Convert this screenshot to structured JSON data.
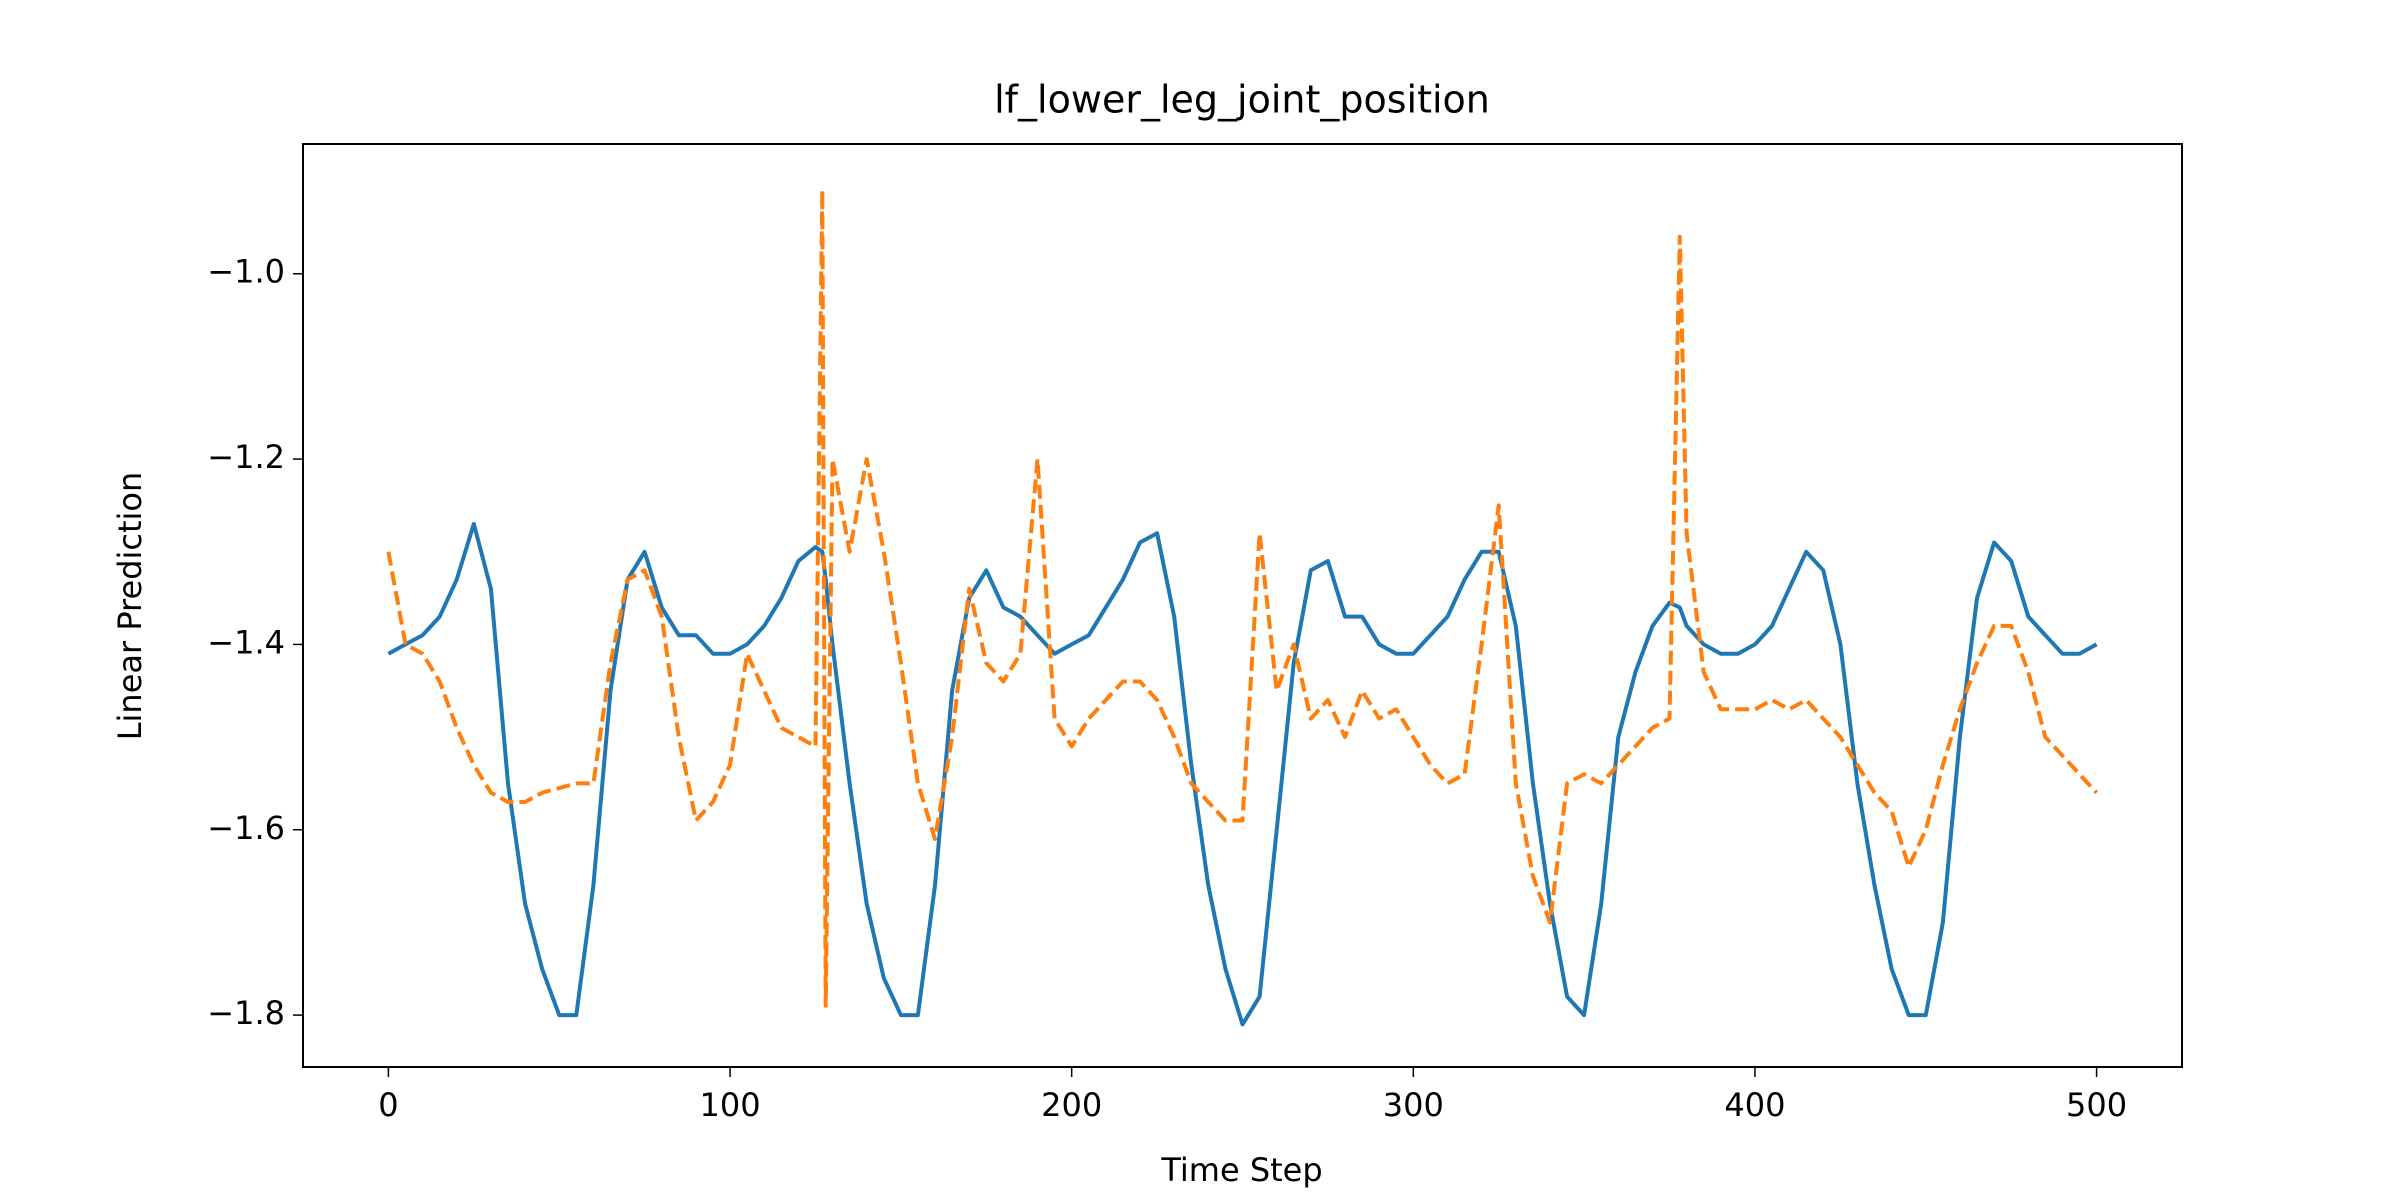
{
  "chart_data": {
    "type": "line",
    "title": "lf_lower_leg_joint_position",
    "x_label": "Time Step",
    "y_label": "Linear Prediction",
    "x": [
      0,
      5,
      10,
      15,
      20,
      25,
      30,
      35,
      40,
      45,
      50,
      55,
      60,
      65,
      70,
      75,
      80,
      85,
      90,
      95,
      100,
      105,
      110,
      115,
      120,
      125,
      127,
      128,
      130,
      135,
      140,
      145,
      150,
      155,
      160,
      165,
      170,
      175,
      180,
      185,
      190,
      195,
      200,
      205,
      210,
      215,
      220,
      225,
      230,
      235,
      240,
      245,
      250,
      255,
      260,
      265,
      270,
      275,
      280,
      285,
      290,
      295,
      300,
      305,
      310,
      315,
      320,
      325,
      330,
      335,
      340,
      345,
      350,
      355,
      360,
      365,
      370,
      375,
      378,
      380,
      385,
      390,
      395,
      400,
      405,
      410,
      415,
      420,
      425,
      430,
      435,
      440,
      445,
      450,
      455,
      460,
      465,
      470,
      475,
      480,
      485,
      490,
      495,
      500
    ],
    "series": [
      {
        "color": "#1f77b4",
        "dashed": false,
        "values": [
          -1.41,
          -1.4,
          -1.39,
          -1.37,
          -1.33,
          -1.27,
          -1.34,
          -1.55,
          -1.68,
          -1.75,
          -1.8,
          -1.8,
          -1.66,
          -1.45,
          -1.33,
          -1.3,
          -1.36,
          -1.39,
          -1.39,
          -1.41,
          -1.41,
          -1.4,
          -1.38,
          -1.35,
          -1.31,
          -1.295,
          -1.3,
          -1.33,
          -1.4,
          -1.55,
          -1.68,
          -1.76,
          -1.8,
          -1.8,
          -1.66,
          -1.45,
          -1.35,
          -1.32,
          -1.36,
          -1.37,
          -1.39,
          -1.41,
          -1.4,
          -1.39,
          -1.36,
          -1.33,
          -1.29,
          -1.28,
          -1.37,
          -1.53,
          -1.66,
          -1.75,
          -1.81,
          -1.78,
          -1.6,
          -1.42,
          -1.32,
          -1.31,
          -1.37,
          -1.37,
          -1.4,
          -1.41,
          -1.41,
          -1.39,
          -1.37,
          -1.33,
          -1.3,
          -1.3,
          -1.38,
          -1.55,
          -1.68,
          -1.78,
          -1.8,
          -1.68,
          -1.5,
          -1.43,
          -1.38,
          -1.355,
          -1.36,
          -1.38,
          -1.4,
          -1.41,
          -1.41,
          -1.4,
          -1.38,
          -1.34,
          -1.3,
          -1.32,
          -1.4,
          -1.55,
          -1.66,
          -1.75,
          -1.8,
          -1.8,
          -1.7,
          -1.5,
          -1.35,
          -1.29,
          -1.31,
          -1.37,
          -1.39,
          -1.41,
          -1.41,
          -1.4
        ]
      },
      {
        "color": "#ff7f0e",
        "dashed": true,
        "values": [
          -1.3,
          -1.4,
          -1.41,
          -1.44,
          -1.49,
          -1.53,
          -1.56,
          -1.57,
          -1.57,
          -1.56,
          -1.555,
          -1.55,
          -1.55,
          -1.42,
          -1.33,
          -1.32,
          -1.37,
          -1.5,
          -1.59,
          -1.57,
          -1.53,
          -1.41,
          -1.45,
          -1.49,
          -1.5,
          -1.51,
          -0.91,
          -1.79,
          -1.2,
          -1.3,
          -1.2,
          -1.3,
          -1.42,
          -1.55,
          -1.61,
          -1.5,
          -1.34,
          -1.42,
          -1.44,
          -1.41,
          -1.2,
          -1.48,
          -1.51,
          -1.48,
          -1.46,
          -1.44,
          -1.44,
          -1.46,
          -1.5,
          -1.55,
          -1.57,
          -1.59,
          -1.59,
          -1.28,
          -1.45,
          -1.4,
          -1.48,
          -1.46,
          -1.5,
          -1.45,
          -1.48,
          -1.47,
          -1.5,
          -1.53,
          -1.55,
          -1.54,
          -1.4,
          -1.25,
          -1.55,
          -1.65,
          -1.7,
          -1.55,
          -1.54,
          -1.55,
          -1.53,
          -1.51,
          -1.49,
          -1.48,
          -0.96,
          -1.28,
          -1.43,
          -1.47,
          -1.47,
          -1.47,
          -1.46,
          -1.47,
          -1.46,
          -1.48,
          -1.5,
          -1.53,
          -1.56,
          -1.58,
          -1.64,
          -1.6,
          -1.53,
          -1.47,
          -1.42,
          -1.38,
          -1.38,
          -1.43,
          -1.5,
          -1.52,
          -1.54,
          -1.56
        ]
      }
    ],
    "xlim": [
      -25,
      525
    ],
    "ylim": [
      -1.856,
      -0.86
    ],
    "xticks": [
      0,
      100,
      200,
      300,
      400,
      500
    ],
    "yticks": [
      {
        "value": -1.8,
        "label": "−1.8"
      },
      {
        "value": -1.6,
        "label": "−1.6"
      },
      {
        "value": -1.4,
        "label": "−1.4"
      },
      {
        "value": -1.2,
        "label": "−1.2"
      },
      {
        "value": -1.0,
        "label": "−1.0"
      }
    ],
    "grid": false
  }
}
